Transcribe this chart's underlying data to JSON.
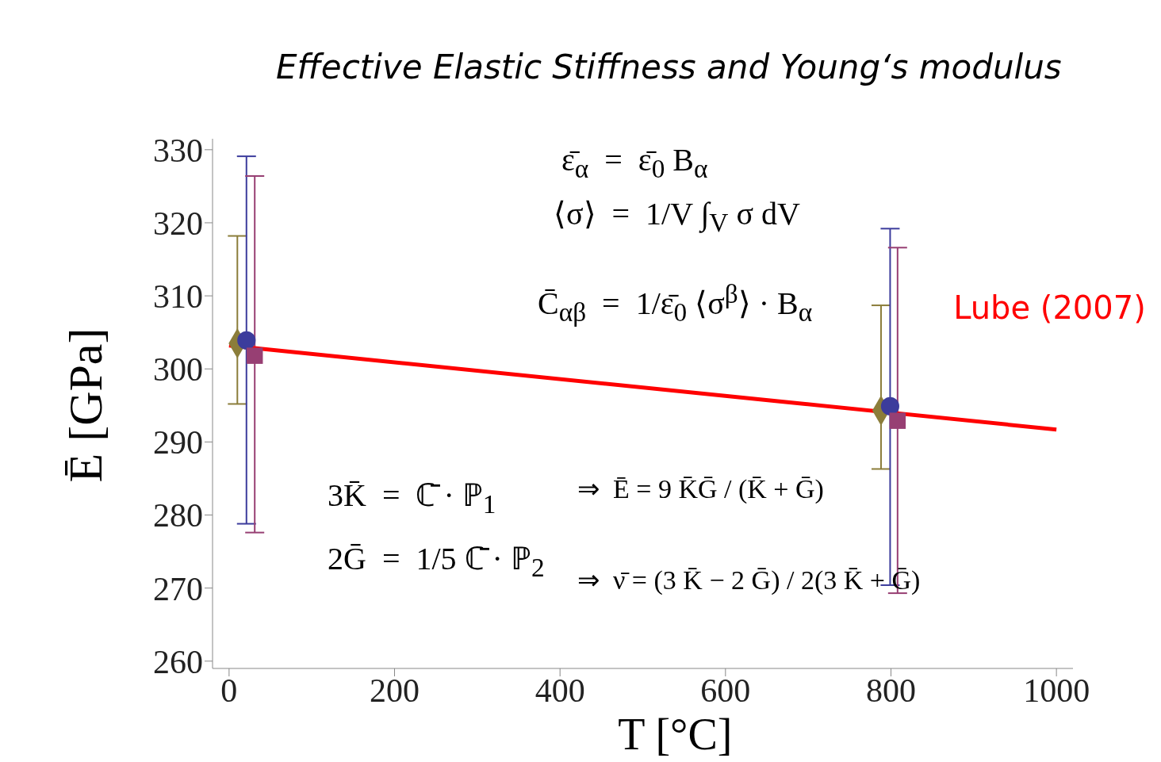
{
  "chart_data": {
    "type": "scatter",
    "title": "Effective Elastic Stiffness and Young‘s modulus",
    "xlabel": "T [°C]",
    "ylabel": "Ē [GPa]",
    "xlim": [
      -20,
      1020
    ],
    "xticks": [
      0,
      200,
      400,
      600,
      800,
      1000
    ],
    "ylim": [
      259,
      331.5
    ],
    "yticks": [
      260,
      270,
      280,
      290,
      300,
      310,
      320,
      330
    ],
    "series": [
      {
        "color": "#8b7d3a",
        "marker": "diamond",
        "x": [
          10,
          788
        ],
        "values": [
          303.5,
          294.3
        ],
        "errors": [
          [
            295.2,
            318.2
          ],
          [
            286.3,
            308.7
          ]
        ]
      },
      {
        "color": "#3c3c9c",
        "marker": "circle",
        "x": [
          21,
          799
        ],
        "values": [
          303.9,
          294.9
        ],
        "errors": [
          [
            278.8,
            329.1
          ],
          [
            270.4,
            319.2
          ]
        ]
      },
      {
        "color": "#973f73",
        "marker": "square",
        "x": [
          31,
          808
        ],
        "values": [
          301.8,
          292.9
        ],
        "errors": [
          [
            277.6,
            326.4
          ],
          [
            269.3,
            316.6
          ]
        ]
      },
      {
        "type": "line",
        "name": "Lube (2007)",
        "color": "#ff0000",
        "x": [
          0,
          1000
        ],
        "values": [
          303.2,
          291.7
        ]
      }
    ],
    "annotations": [
      "ε̄$_{α}$  =  ε̄$_{0}$ B$_{α}$",
      "⟨σ⟩  =  1/V ∫$_{V}$ σ dV",
      "C̄$_{αβ}$  =  1/ε̄$_{0}$ ⟨σ$^{β}$⟩ · B$_{α}$",
      "3K̄  =  ℂ̄ · ℙ$_{1}$",
      "2Ḡ  =  1/5 ℂ̄ · ℙ$_{2}$",
      "⇒  Ē = 9 K̄Ḡ / (K̄ + Ḡ)",
      "⇒  ν̄ = (3 K̄ − 2 Ḡ) / 2(3 K̄ + Ḡ)"
    ]
  }
}
